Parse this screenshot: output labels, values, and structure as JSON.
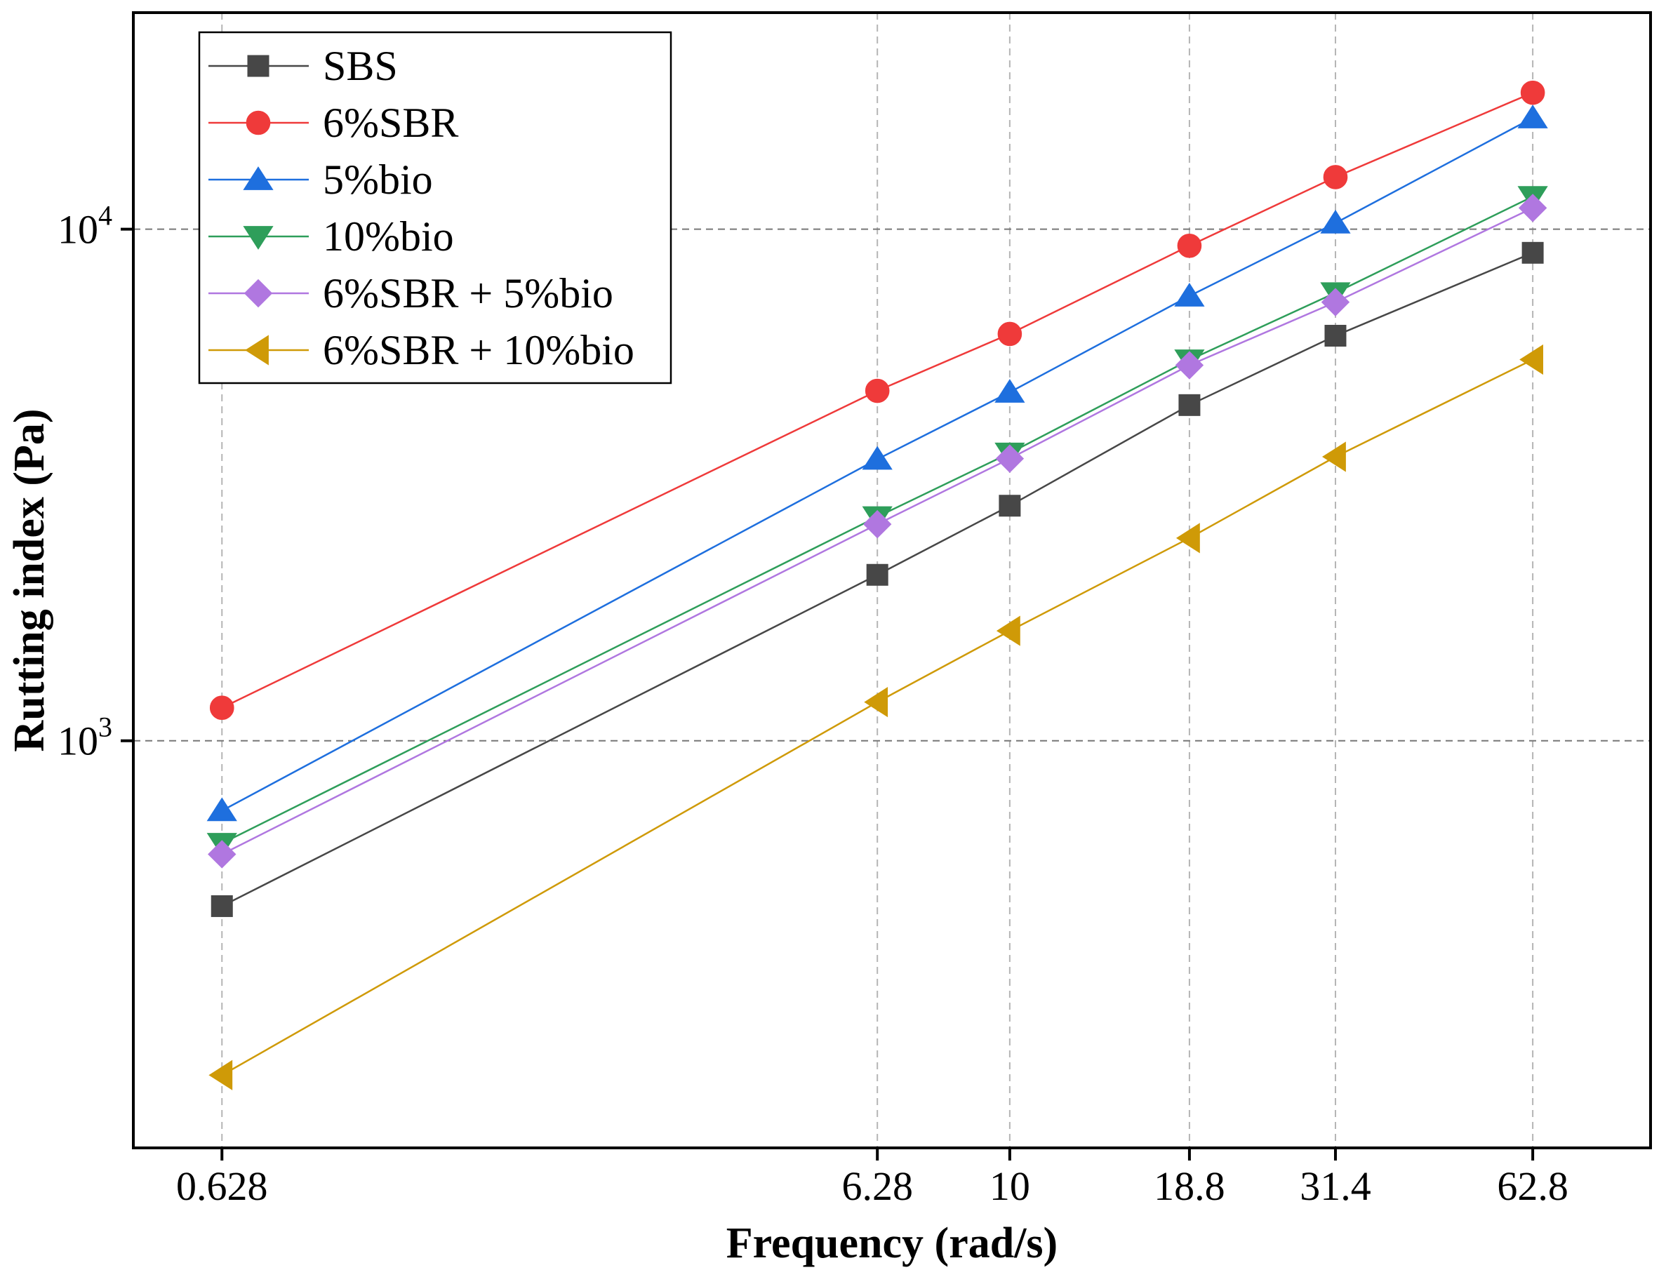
{
  "chart_data": {
    "type": "line",
    "title": "",
    "xlabel": "Frequency (rad/s)",
    "ylabel": "Rutting index (Pa)",
    "x_scale": "log",
    "y_scale": "log",
    "x": [
      0.628,
      6.28,
      10,
      18.8,
      31.4,
      62.8
    ],
    "x_tick_labels": [
      "0.628",
      "6.28",
      "10",
      "18.8",
      "31.4",
      "62.8"
    ],
    "y_ticks": [
      {
        "value": 1000,
        "base": "10",
        "exp": "3"
      },
      {
        "value": 10000,
        "base": "10",
        "exp": "4"
      }
    ],
    "xlim": [
      0.46,
      95
    ],
    "ylim": [
      160,
      26500
    ],
    "grid": true,
    "legend_position": "top-left",
    "series": [
      {
        "name": "SBS",
        "color": "#474747",
        "marker": "square",
        "values": [
          475,
          2110,
          2880,
          4530,
          6190,
          8990
        ]
      },
      {
        "name": "6%SBR",
        "color": "#ef3a3a",
        "marker": "circle",
        "values": [
          1160,
          4830,
          6240,
          9280,
          12640,
          18480
        ]
      },
      {
        "name": "5%bio",
        "color": "#1e6fde",
        "marker": "triangle-up",
        "values": [
          730,
          3550,
          4800,
          7400,
          10280,
          16500
        ]
      },
      {
        "name": "10%bio",
        "color": "#2e9e5a",
        "marker": "triangle-down",
        "values": [
          630,
          2740,
          3650,
          5550,
          7510,
          11580
        ]
      },
      {
        "name": "6%SBR + 5%bio",
        "color": "#b077e0",
        "marker": "diamond",
        "values": [
          600,
          2650,
          3560,
          5420,
          7200,
          11000
        ]
      },
      {
        "name": "6%SBR + 10%bio",
        "color": "#cf9a07",
        "marker": "triangle-left",
        "values": [
          222,
          1190,
          1640,
          2490,
          3590,
          5560
        ]
      }
    ]
  }
}
